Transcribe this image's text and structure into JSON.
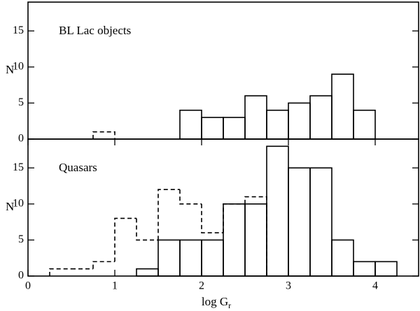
{
  "chart_data": [
    {
      "type": "histogram",
      "annotation": "BL Lac objects",
      "ylabel": "N",
      "xlim": [
        0,
        4.5
      ],
      "ylim": [
        0,
        19
      ],
      "yticks": [
        0,
        5,
        10,
        15
      ],
      "series": [
        {
          "style": "dashed",
          "color": "#000000",
          "bins": [
            0.75,
            1.0
          ],
          "values": [
            1
          ]
        },
        {
          "style": "solid",
          "color": "#000000",
          "bins": [
            1.75,
            2.0,
            2.25,
            2.5,
            2.75,
            3.0,
            3.25,
            3.5,
            3.75,
            4.0
          ],
          "values": [
            4,
            3,
            3,
            6,
            4,
            5,
            6,
            9,
            4
          ]
        }
      ]
    },
    {
      "type": "histogram",
      "annotation": "Quasars",
      "ylabel": "N",
      "xlabel": {
        "text": "log G",
        "subscript": "r"
      },
      "xlim": [
        0,
        4.5
      ],
      "ylim": [
        0,
        19
      ],
      "yticks": [
        0,
        5,
        10,
        15
      ],
      "xticks": [
        0,
        1,
        2,
        3,
        4
      ],
      "series": [
        {
          "style": "dashed",
          "color": "#000000",
          "bins": [
            0.25,
            0.5,
            0.75,
            1.0,
            1.25,
            1.5,
            1.75,
            2.0,
            2.25,
            2.5,
            2.75
          ],
          "values": [
            1,
            1,
            2,
            8,
            5,
            12,
            10,
            6,
            10,
            11
          ]
        },
        {
          "style": "solid",
          "color": "#000000",
          "bins": [
            1.25,
            1.5,
            1.75,
            2.0,
            2.25,
            2.5,
            2.75,
            3.0,
            3.25,
            3.5,
            3.75,
            4.0,
            4.25
          ],
          "values": [
            1,
            5,
            5,
            5,
            10,
            10,
            18,
            15,
            15,
            5,
            2,
            2
          ]
        }
      ]
    }
  ]
}
